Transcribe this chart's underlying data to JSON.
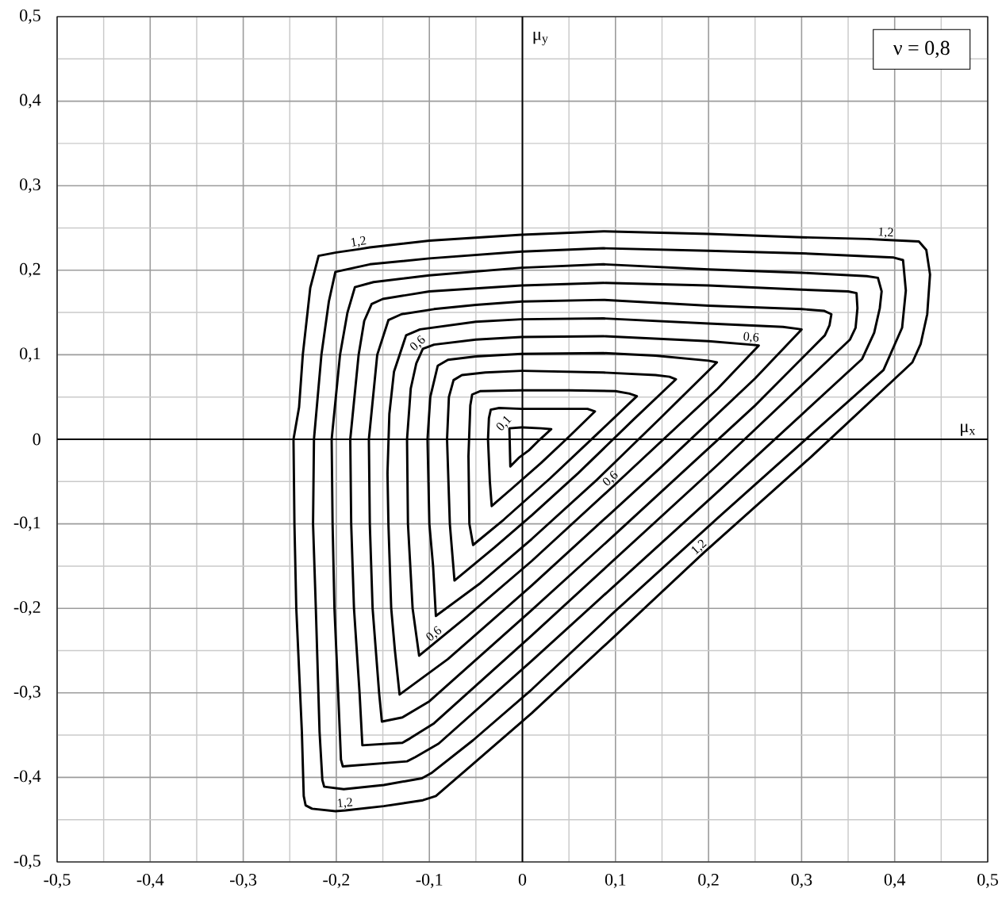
{
  "chart_data": {
    "type": "line",
    "xlabel": "μ$_{x}$",
    "ylabel": "μ$_{y}$",
    "annotations": [
      "ν = 0,8",
      {
        "text": "0,1",
        "x": -0.014,
        "y": 0.013
      },
      {
        "text": "0,6",
        "x": -0.107,
        "y": 0.107
      },
      {
        "text": "0,6",
        "x": 0.245,
        "y": 0.112
      },
      {
        "text": "0,6",
        "x": 0.1,
        "y": -0.053
      },
      {
        "text": "0,6",
        "x": -0.09,
        "y": -0.237
      },
      {
        "text": "1,2",
        "x": -0.175,
        "y": 0.225
      },
      {
        "text": "1,2",
        "x": 0.39,
        "y": 0.236
      },
      {
        "text": "1,2",
        "x": 0.195,
        "y": -0.134
      },
      {
        "text": "1,2",
        "x": -0.19,
        "y": -0.439
      }
    ],
    "xlim": [
      -0.5,
      0.5
    ],
    "ylim": [
      -0.5,
      0.5
    ],
    "xticks": [
      {
        "value": -0.5,
        "label": "-0,5"
      },
      {
        "value": -0.45,
        "label": null
      },
      {
        "value": -0.4,
        "label": "-0,4"
      },
      {
        "value": -0.35,
        "label": null
      },
      {
        "value": -0.3,
        "label": "-0,3"
      },
      {
        "value": -0.25,
        "label": null
      },
      {
        "value": -0.2,
        "label": "-0,2"
      },
      {
        "value": -0.15,
        "label": null
      },
      {
        "value": -0.1,
        "label": "-0,1"
      },
      {
        "value": -0.05,
        "label": null
      },
      0,
      {
        "value": 0.05,
        "label": null
      },
      {
        "value": 0.1,
        "label": "0,1"
      },
      {
        "value": 0.15,
        "label": null
      },
      {
        "value": 0.2,
        "label": "0,2"
      },
      {
        "value": 0.25,
        "label": null
      },
      {
        "value": 0.3,
        "label": "0,3"
      },
      {
        "value": 0.35,
        "label": null
      },
      {
        "value": 0.4,
        "label": "0,4"
      },
      {
        "value": 0.45,
        "label": null
      },
      {
        "value": 0.5,
        "label": "0,5"
      }
    ],
    "yticks": [
      {
        "value": -0.5,
        "label": "-0,5"
      },
      {
        "value": -0.45,
        "label": null
      },
      {
        "value": -0.4,
        "label": "-0,4"
      },
      {
        "value": -0.35,
        "label": null
      },
      {
        "value": -0.3,
        "label": "-0,3"
      },
      {
        "value": -0.25,
        "label": null
      },
      {
        "value": -0.2,
        "label": "-0,2"
      },
      {
        "value": -0.15,
        "label": null
      },
      {
        "value": -0.1,
        "label": "-0,1"
      },
      {
        "value": -0.05,
        "label": null
      },
      0,
      {
        "value": 0.05,
        "label": null
      },
      {
        "value": 0.1,
        "label": "0,1"
      },
      {
        "value": 0.15,
        "label": null
      },
      {
        "value": 0.2,
        "label": "0,2"
      },
      {
        "value": 0.25,
        "label": null
      },
      {
        "value": 0.3,
        "label": "0,3"
      },
      {
        "value": 0.35,
        "label": null
      },
      {
        "value": 0.4,
        "label": "0,4"
      },
      {
        "value": 0.45,
        "label": null
      },
      {
        "value": 0.5,
        "label": "0,5"
      }
    ],
    "grid": true,
    "series": [
      {
        "color": "#000000",
        "x": [
          0.0,
          0.02,
          0.031,
          0.018,
          0.007,
          -0.004,
          -0.013,
          -0.014,
          -0.001
        ],
        "values": [
          0.014,
          0.013,
          0.012,
          -0.001,
          -0.013,
          -0.022,
          -0.032,
          0.013,
          0.014
        ]
      },
      {
        "color": "#000000",
        "x": [
          0.0,
          0.04,
          0.07,
          0.078,
          0.05,
          0.02,
          -0.01,
          -0.033,
          -0.035,
          -0.037,
          -0.036,
          -0.034,
          -0.025,
          -0.001
        ],
        "values": [
          0.036,
          0.036,
          0.036,
          0.033,
          0.003,
          -0.028,
          -0.057,
          -0.079,
          -0.05,
          0.0,
          0.025,
          0.035,
          0.037,
          0.036
        ]
      },
      {
        "color": "#000000",
        "x": [
          0.0,
          0.05,
          0.1,
          0.115,
          0.123,
          0.08,
          0.03,
          -0.02,
          -0.053,
          -0.057,
          -0.058,
          -0.056,
          -0.054,
          -0.045,
          -0.001
        ],
        "values": [
          0.058,
          0.058,
          0.057,
          0.054,
          0.051,
          0.006,
          -0.046,
          -0.095,
          -0.125,
          -0.1,
          -0.02,
          0.04,
          0.053,
          0.057,
          0.058
        ]
      },
      {
        "color": "#000000",
        "x": [
          0.0,
          0.087,
          0.143,
          0.158,
          0.165,
          0.12,
          0.06,
          0.01,
          -0.03,
          -0.073,
          -0.078,
          -0.081,
          -0.079,
          -0.074,
          -0.065,
          -0.04,
          -0.001
        ],
        "values": [
          0.081,
          0.079,
          0.076,
          0.074,
          0.071,
          0.024,
          -0.04,
          -0.09,
          -0.128,
          -0.167,
          -0.1,
          0.0,
          0.05,
          0.07,
          0.076,
          0.079,
          0.081
        ]
      },
      {
        "color": "#000000",
        "x": [
          0.0,
          0.087,
          0.143,
          0.2,
          0.209,
          0.15,
          0.08,
          0.01,
          -0.045,
          -0.093,
          -0.096,
          -0.1,
          -0.102,
          -0.099,
          -0.091,
          -0.08,
          -0.05,
          -0.001
        ],
        "values": [
          0.101,
          0.102,
          0.099,
          0.093,
          0.091,
          0.027,
          -0.048,
          -0.118,
          -0.17,
          -0.209,
          -0.15,
          -0.1,
          0.0,
          0.05,
          0.087,
          0.094,
          0.098,
          0.101
        ]
      },
      {
        "color": "#000000",
        "x": [
          0.0,
          0.087,
          0.2,
          0.245,
          0.254,
          0.21,
          0.1,
          0.01,
          -0.06,
          -0.09,
          -0.111,
          -0.118,
          -0.123,
          -0.124,
          -0.12,
          -0.114,
          -0.107,
          -0.095,
          -0.05,
          -0.001
        ],
        "values": [
          0.121,
          0.122,
          0.116,
          0.112,
          0.111,
          0.06,
          -0.053,
          -0.144,
          -0.21,
          -0.237,
          -0.256,
          -0.2,
          -0.1,
          0.0,
          0.06,
          0.09,
          0.107,
          0.112,
          0.118,
          0.121
        ]
      },
      {
        "color": "#000000",
        "x": [
          0.0,
          0.087,
          0.2,
          0.28,
          0.3,
          0.25,
          0.15,
          0.01,
          -0.08,
          -0.132,
          -0.137,
          -0.141,
          -0.144,
          -0.145,
          -0.143,
          -0.138,
          -0.125,
          -0.11,
          -0.05,
          -0.001
        ],
        "values": [
          0.142,
          0.143,
          0.137,
          0.133,
          0.13,
          0.072,
          -0.032,
          -0.173,
          -0.26,
          -0.302,
          -0.25,
          -0.2,
          -0.1,
          -0.04,
          0.03,
          0.08,
          0.123,
          0.13,
          0.139,
          0.142
        ]
      },
      {
        "color": "#000000",
        "x": [
          0.0,
          0.087,
          0.2,
          0.3,
          0.324,
          0.332,
          0.33,
          0.325,
          0.25,
          0.1,
          0.01,
          -0.1,
          -0.129,
          -0.151,
          -0.154,
          -0.161,
          -0.164,
          -0.165,
          -0.156,
          -0.144,
          -0.13,
          -0.095,
          -0.05,
          -0.001
        ],
        "values": [
          0.163,
          0.165,
          0.158,
          0.154,
          0.152,
          0.148,
          0.135,
          0.123,
          0.04,
          -0.112,
          -0.202,
          -0.31,
          -0.329,
          -0.334,
          -0.3,
          -0.2,
          -0.1,
          0.0,
          0.1,
          0.141,
          0.148,
          0.154,
          0.159,
          0.163
        ]
      },
      {
        "color": "#000000",
        "x": [
          0.0,
          0.087,
          0.2,
          0.3,
          0.35,
          0.359,
          0.36,
          0.358,
          0.352,
          0.21,
          0.01,
          -0.095,
          -0.121,
          -0.129,
          -0.172,
          -0.175,
          -0.181,
          -0.184,
          -0.185,
          -0.176,
          -0.17,
          -0.162,
          -0.15,
          -0.1,
          -0.001
        ],
        "values": [
          0.182,
          0.185,
          0.182,
          0.177,
          0.175,
          0.173,
          0.155,
          0.132,
          0.118,
          -0.03,
          -0.232,
          -0.336,
          -0.354,
          -0.359,
          -0.362,
          -0.3,
          -0.2,
          -0.1,
          0.0,
          0.1,
          0.14,
          0.16,
          0.166,
          0.175,
          0.182
        ]
      },
      {
        "color": "#000000",
        "x": [
          0.0,
          0.087,
          0.2,
          0.3,
          0.37,
          0.382,
          0.386,
          0.384,
          0.378,
          0.365,
          0.21,
          0.01,
          -0.09,
          -0.115,
          -0.124,
          -0.193,
          -0.195,
          -0.198,
          -0.202,
          -0.204,
          -0.205,
          -0.196,
          -0.188,
          -0.18,
          -0.16,
          -0.1,
          -0.001
        ],
        "values": [
          0.203,
          0.207,
          0.201,
          0.197,
          0.193,
          0.191,
          0.175,
          0.155,
          0.126,
          0.095,
          -0.062,
          -0.262,
          -0.36,
          -0.376,
          -0.381,
          -0.387,
          -0.379,
          -0.3,
          -0.2,
          -0.1,
          0.0,
          0.1,
          0.15,
          0.18,
          0.186,
          0.194,
          0.203
        ]
      },
      {
        "color": "#000000",
        "x": [
          0.0,
          0.087,
          0.2,
          0.3,
          0.399,
          0.409,
          0.412,
          0.408,
          0.398,
          0.388,
          0.21,
          0.1,
          0.01,
          -0.053,
          -0.098,
          -0.108,
          -0.149,
          -0.192,
          -0.213,
          -0.215,
          -0.218,
          -0.222,
          -0.225,
          -0.224,
          -0.216,
          -0.208,
          -0.201,
          -0.164,
          -0.1,
          -0.001
        ],
        "values": [
          0.222,
          0.226,
          0.223,
          0.22,
          0.215,
          0.212,
          0.176,
          0.132,
          0.107,
          0.082,
          -0.093,
          -0.203,
          -0.296,
          -0.356,
          -0.395,
          -0.401,
          -0.409,
          -0.414,
          -0.411,
          -0.403,
          -0.346,
          -0.2,
          -0.1,
          0.0,
          0.1,
          0.163,
          0.198,
          0.207,
          0.214,
          0.222
        ]
      },
      {
        "color": "#000000",
        "x": [
          0.0,
          0.087,
          0.2,
          0.3,
          0.371,
          0.39,
          0.426,
          0.434,
          0.438,
          0.435,
          0.428,
          0.419,
          0.31,
          0.195,
          0.1,
          0.01,
          -0.053,
          -0.093,
          -0.107,
          -0.149,
          -0.19,
          -0.201,
          -0.226,
          -0.233,
          -0.235,
          -0.237,
          -0.243,
          -0.245,
          -0.246,
          -0.24,
          -0.236,
          -0.228,
          -0.219,
          -0.2,
          -0.175,
          -0.164,
          -0.1,
          -0.001
        ],
        "values": [
          0.242,
          0.246,
          0.243,
          0.239,
          0.237,
          0.236,
          0.234,
          0.224,
          0.195,
          0.148,
          0.113,
          0.091,
          -0.021,
          -0.134,
          -0.232,
          -0.324,
          -0.384,
          -0.422,
          -0.427,
          -0.434,
          -0.439,
          -0.44,
          -0.437,
          -0.433,
          -0.422,
          -0.346,
          -0.2,
          -0.1,
          0.0,
          0.038,
          0.1,
          0.179,
          0.217,
          0.221,
          0.225,
          0.227,
          0.235,
          0.242
        ]
      }
    ]
  }
}
